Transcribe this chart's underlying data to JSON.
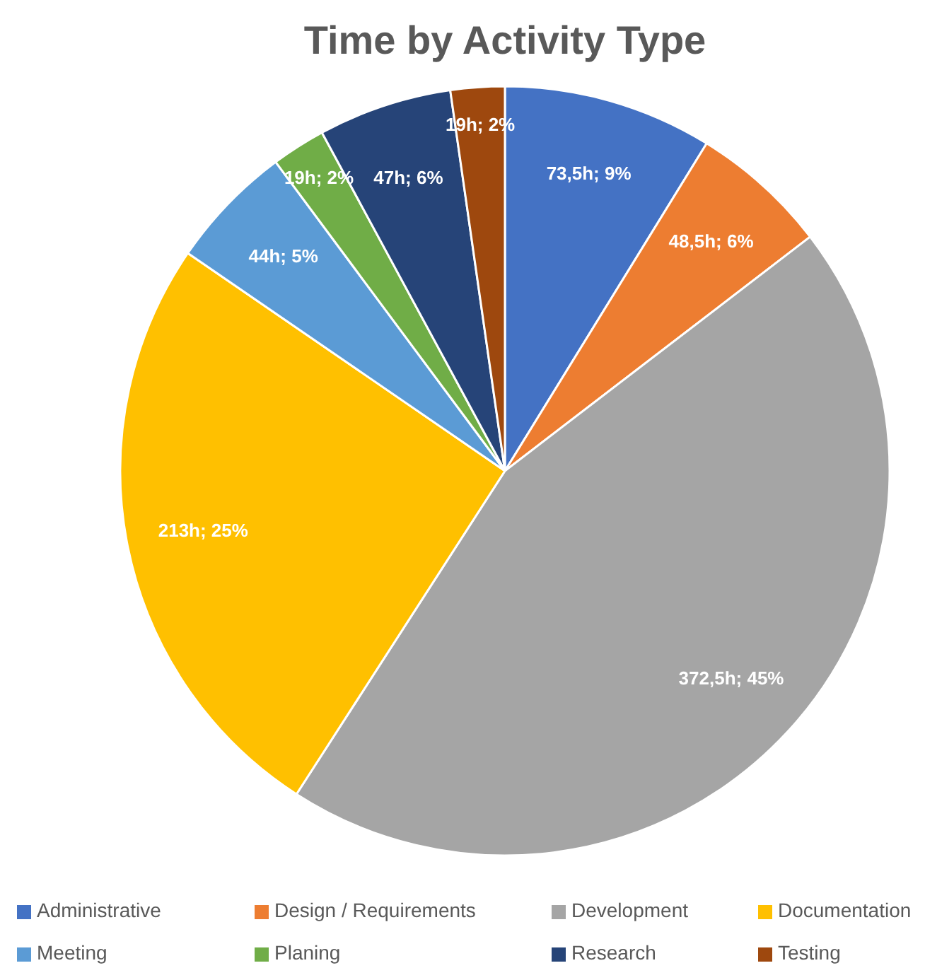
{
  "chart_data": {
    "type": "pie",
    "title": "Time by Activity Type",
    "categories": [
      "Administrative",
      "Design / Requirements",
      "Development",
      "Documentation",
      "Meeting",
      "Planing",
      "Research",
      "Testing"
    ],
    "values": [
      73.5,
      48.5,
      372.5,
      213,
      44,
      19,
      47,
      19
    ],
    "colors": [
      "#4472c4",
      "#ed7d31",
      "#a5a5a5",
      "#ffc000",
      "#5b9bd5",
      "#70ad47",
      "#264478",
      "#9e480e"
    ],
    "value_labels": [
      "73,5h; 9%",
      "48,5h; 6%",
      "372,5h; 45%",
      "213h; 25%",
      "44h; 5%",
      "19h; 2%",
      "47h; 6%",
      "19h; 2%"
    ],
    "legend": "bottom"
  }
}
